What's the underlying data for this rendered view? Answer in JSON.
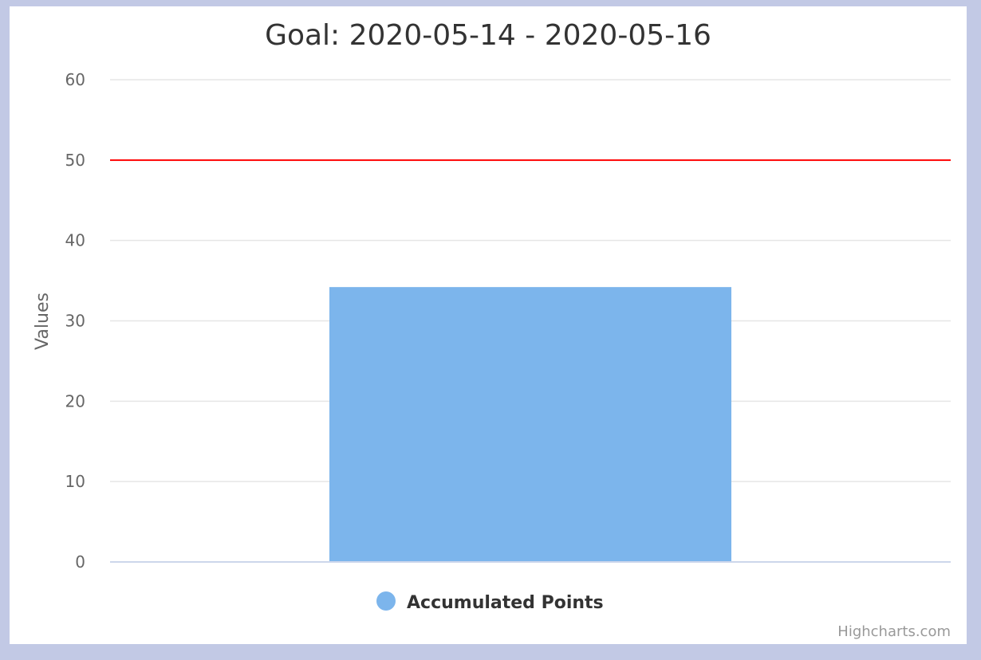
{
  "chart_data": {
    "type": "bar",
    "title": "Goal: 2020-05-14 - 2020-05-16",
    "xlabel": "",
    "ylabel": "Values",
    "ylim": [
      0,
      60
    ],
    "yticks": [
      0,
      10,
      20,
      30,
      40,
      50,
      60
    ],
    "categories": [
      ""
    ],
    "series": [
      {
        "name": "Accumulated Points",
        "values": [
          34.2
        ],
        "color": "#7cb5ec"
      }
    ],
    "goal_line": {
      "value": 50,
      "color": "#ff0000"
    },
    "grid": true,
    "legend": "bottom-center"
  },
  "credits": "Highcharts.com",
  "colors": {
    "background": "#c2c9e5",
    "plot_background": "#ffffff",
    "gridline": "#e6e6e6",
    "axis_line": "#ccd6eb"
  }
}
